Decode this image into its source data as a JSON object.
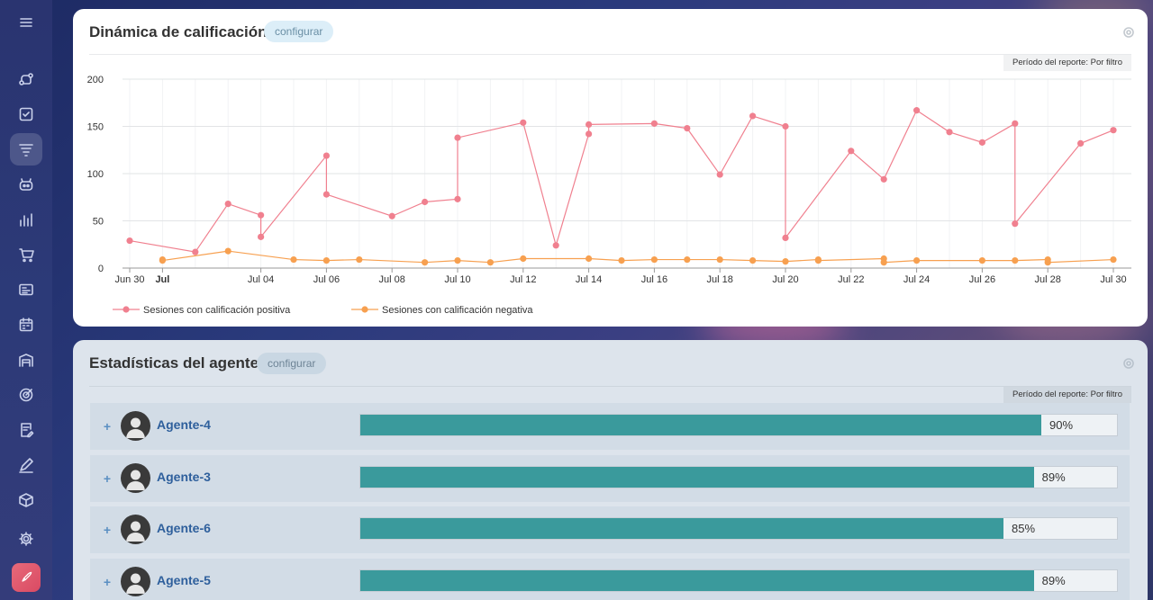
{
  "sidebar": {
    "items": [
      {
        "icon": "menu-icon"
      },
      {
        "icon": "workflow-icon"
      },
      {
        "icon": "checkbox-icon"
      },
      {
        "icon": "funnel-icon",
        "active": true
      },
      {
        "icon": "robot-icon"
      },
      {
        "icon": "bar-chart-icon"
      },
      {
        "icon": "cart-icon"
      },
      {
        "icon": "contact-card-icon"
      },
      {
        "icon": "calendar-icon"
      },
      {
        "icon": "warehouse-icon"
      },
      {
        "icon": "target-icon"
      },
      {
        "icon": "document-edit-icon"
      },
      {
        "icon": "signature-icon"
      },
      {
        "icon": "box-icon"
      },
      {
        "icon": "settings-icon"
      },
      {
        "icon": "rocket-icon"
      }
    ]
  },
  "rating_card": {
    "title": "Dinámica de calificación",
    "configure_label": "configurar",
    "period_label": "Período del reporte: Por filtro"
  },
  "chart_data": {
    "type": "line",
    "title": "",
    "xlabel": "",
    "ylabel": "",
    "ylim": [
      0,
      200
    ],
    "yticks": [
      "0",
      "50",
      "100",
      "150",
      "200"
    ],
    "xticks": [
      "Jun 30",
      "Jul",
      "Jul 04",
      "Jul 06",
      "Jul 08",
      "Jul 10",
      "Jul 12",
      "Jul 14",
      "Jul 16",
      "Jul 18",
      "Jul 20",
      "Jul 22",
      "Jul 24",
      "Jul 26",
      "Jul 28",
      "Jul 30"
    ],
    "xtick_bold": "Jul",
    "x": [
      "Jun 30",
      "Jul 02",
      "Jul 03",
      "Jul 04",
      "Jul 04",
      "Jul 06",
      "Jul 06",
      "Jul 08",
      "Jul 09",
      "Jul 10",
      "Jul 10",
      "Jul 12",
      "Jul 13",
      "Jul 14",
      "Jul 14",
      "Jul 16",
      "Jul 17",
      "Jul 18",
      "Jul 19",
      "Jul 20",
      "Jul 20",
      "Jul 22",
      "Jul 23",
      "Jul 24",
      "Jul 25",
      "Jul 26",
      "Jul 27",
      "Jul 27",
      "Jul 29",
      "Jul 30"
    ],
    "series": [
      {
        "name": "Sesiones con calificación positiva",
        "color": "#f0808f",
        "values": [
          29,
          17,
          68,
          56,
          33,
          119,
          78,
          55,
          70,
          73,
          138,
          154,
          24,
          142,
          152,
          153,
          148,
          99,
          161,
          150,
          32,
          124,
          94,
          167,
          144,
          133,
          153,
          47,
          132,
          146
        ]
      },
      {
        "name": "Sesiones con calificación negativa",
        "color": "#f7a050",
        "points": [
          [
            "Jul 01",
            9
          ],
          [
            "Jul 01",
            8
          ],
          [
            "Jul 03",
            18
          ],
          [
            "Jul 05",
            9
          ],
          [
            "Jul 06",
            8
          ],
          [
            "Jul 07",
            9
          ],
          [
            "Jul 09",
            6
          ],
          [
            "Jul 10",
            8
          ],
          [
            "Jul 11",
            6
          ],
          [
            "Jul 12",
            10
          ],
          [
            "Jul 14",
            10
          ],
          [
            "Jul 15",
            8
          ],
          [
            "Jul 16",
            9
          ],
          [
            "Jul 17",
            9
          ],
          [
            "Jul 18",
            9
          ],
          [
            "Jul 19",
            8
          ],
          [
            "Jul 20",
            7
          ],
          [
            "Jul 21",
            9
          ],
          [
            "Jul 21",
            8
          ],
          [
            "Jul 23",
            10
          ],
          [
            "Jul 23",
            6
          ],
          [
            "Jul 24",
            8
          ],
          [
            "Jul 26",
            8
          ],
          [
            "Jul 27",
            8
          ],
          [
            "Jul 28",
            9
          ],
          [
            "Jul 28",
            6
          ],
          [
            "Jul 30",
            9
          ]
        ]
      }
    ],
    "legend_position": "bottom-left"
  },
  "agent_card": {
    "title": "Estadísticas del agente",
    "configure_label": "configurar",
    "period_label": "Período del reporte: Por filtro",
    "bar_color": "#3a9a9c",
    "agents": [
      {
        "name": "Agente-4",
        "percent_label": "90%",
        "fraction": 0.9
      },
      {
        "name": "Agente-3",
        "percent_label": "89%",
        "fraction": 0.89
      },
      {
        "name": "Agente-6",
        "percent_label": "85%",
        "fraction": 0.85
      },
      {
        "name": "Agente-5",
        "percent_label": "89%",
        "fraction": 0.89
      }
    ]
  }
}
